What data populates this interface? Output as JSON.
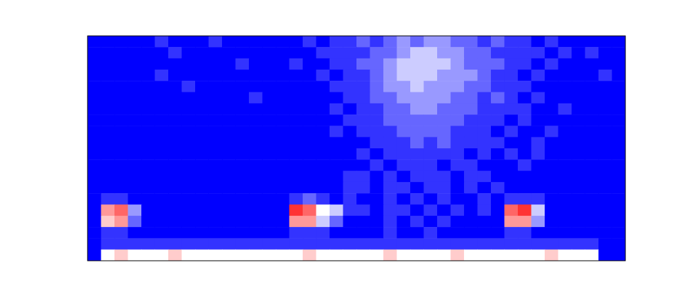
{
  "chart_data": {
    "type": "heatmap",
    "tick_labels": false,
    "zlim": [
      0,
      10
    ],
    "cells": [
      [
        0,
        0,
        0,
        0,
        0,
        1,
        0,
        0,
        0,
        1,
        0,
        0,
        0,
        0,
        0,
        0,
        1,
        0,
        1,
        1,
        2,
        1,
        2,
        3,
        2,
        3,
        3,
        2,
        2,
        1,
        2,
        1,
        1,
        0,
        1,
        0,
        0,
        0,
        0,
        0
      ],
      [
        0,
        0,
        0,
        0,
        0,
        0,
        1,
        0,
        0,
        0,
        0,
        0,
        0,
        0,
        0,
        0,
        0,
        1,
        1,
        1,
        1,
        2,
        2,
        3,
        4,
        4,
        3,
        3,
        2,
        2,
        1,
        1,
        1,
        1,
        0,
        1,
        0,
        1,
        0,
        0
      ],
      [
        0,
        0,
        0,
        0,
        0,
        0,
        0,
        0,
        0,
        0,
        0,
        1,
        0,
        0,
        0,
        1,
        0,
        0,
        1,
        1,
        2,
        2,
        3,
        4,
        4,
        4,
        4,
        3,
        2,
        2,
        2,
        1,
        1,
        0,
        1,
        0,
        0,
        0,
        0,
        0
      ],
      [
        0,
        0,
        0,
        0,
        0,
        1,
        0,
        0,
        0,
        0,
        0,
        0,
        0,
        0,
        0,
        0,
        0,
        1,
        0,
        1,
        1,
        2,
        3,
        4,
        4,
        4,
        3,
        3,
        3,
        2,
        1,
        1,
        0,
        1,
        0,
        0,
        0,
        0,
        1,
        0
      ],
      [
        0,
        0,
        0,
        0,
        0,
        0,
        0,
        1,
        0,
        0,
        0,
        0,
        0,
        0,
        0,
        0,
        0,
        0,
        1,
        1,
        1,
        2,
        3,
        3,
        4,
        3,
        3,
        3,
        2,
        2,
        1,
        1,
        1,
        0,
        0,
        0,
        0,
        0,
        0,
        0
      ],
      [
        0,
        0,
        0,
        0,
        0,
        0,
        0,
        0,
        0,
        0,
        0,
        0,
        1,
        0,
        0,
        0,
        0,
        0,
        0,
        1,
        1,
        2,
        2,
        3,
        3,
        3,
        3,
        2,
        2,
        1,
        2,
        1,
        0,
        1,
        0,
        0,
        0,
        0,
        0,
        0
      ],
      [
        0,
        0,
        0,
        0,
        0,
        0,
        0,
        0,
        0,
        0,
        0,
        0,
        0,
        0,
        0,
        0,
        0,
        0,
        1,
        0,
        1,
        1,
        2,
        2,
        3,
        3,
        2,
        2,
        2,
        1,
        1,
        1,
        1,
        0,
        0,
        1,
        0,
        0,
        0,
        0
      ],
      [
        0,
        0,
        0,
        0,
        0,
        0,
        0,
        0,
        0,
        0,
        0,
        0,
        0,
        0,
        0,
        0,
        0,
        0,
        0,
        1,
        1,
        1,
        2,
        2,
        2,
        2,
        2,
        2,
        1,
        1,
        1,
        0,
        1,
        0,
        0,
        0,
        0,
        0,
        0,
        0
      ],
      [
        0,
        0,
        0,
        0,
        0,
        0,
        0,
        0,
        0,
        0,
        0,
        0,
        0,
        0,
        0,
        0,
        0,
        0,
        1,
        0,
        1,
        1,
        1,
        2,
        2,
        2,
        2,
        1,
        1,
        1,
        0,
        1,
        0,
        0,
        1,
        0,
        0,
        0,
        0,
        0
      ],
      [
        0,
        0,
        0,
        0,
        0,
        0,
        0,
        0,
        0,
        0,
        0,
        0,
        0,
        0,
        0,
        0,
        0,
        0,
        0,
        0,
        0,
        1,
        1,
        1,
        2,
        1,
        2,
        1,
        1,
        1,
        1,
        0,
        0,
        1,
        0,
        0,
        0,
        0,
        0,
        0
      ],
      [
        0,
        0,
        0,
        0,
        0,
        0,
        0,
        0,
        0,
        0,
        0,
        0,
        0,
        0,
        0,
        0,
        0,
        0,
        0,
        0,
        1,
        0,
        1,
        1,
        1,
        1,
        1,
        1,
        0,
        1,
        0,
        1,
        0,
        1,
        0,
        0,
        0,
        0,
        0,
        0
      ],
      [
        0,
        0,
        0,
        0,
        0,
        0,
        0,
        0,
        0,
        0,
        0,
        0,
        0,
        0,
        0,
        0,
        0,
        0,
        0,
        0,
        0,
        1,
        0,
        1,
        1,
        1,
        0,
        1,
        1,
        0,
        0,
        0,
        1,
        0,
        0,
        0,
        0,
        0,
        0,
        0
      ],
      [
        0,
        0,
        0,
        0,
        0,
        0,
        0,
        0,
        0,
        0,
        0,
        0,
        0,
        0,
        0,
        0,
        0,
        0,
        0,
        1,
        1,
        0,
        1,
        0,
        1,
        1,
        1,
        0,
        1,
        1,
        0,
        0,
        0,
        0,
        0,
        0,
        0,
        0,
        0,
        0
      ],
      [
        0,
        0,
        0,
        0,
        0,
        0,
        0,
        0,
        0,
        0,
        0,
        0,
        0,
        0,
        0,
        0,
        0,
        0,
        0,
        1,
        1,
        0,
        1,
        1,
        0,
        1,
        1,
        0,
        1,
        0,
        1,
        0,
        0,
        0,
        0,
        0,
        0,
        0,
        0,
        0
      ],
      [
        0,
        1,
        1,
        0,
        0,
        0,
        0,
        0,
        0,
        0,
        0,
        0,
        0,
        0,
        0,
        1,
        2,
        1,
        0,
        1,
        0,
        0,
        1,
        0,
        1,
        0,
        1,
        0,
        0,
        1,
        0,
        1,
        1,
        1,
        0,
        0,
        0,
        0,
        0,
        0
      ],
      [
        0,
        7,
        8,
        3,
        0,
        0,
        0,
        0,
        0,
        0,
        0,
        0,
        0,
        0,
        0,
        9,
        8,
        5,
        4,
        1,
        1,
        0,
        1,
        1,
        0,
        1,
        0,
        1,
        0,
        1,
        0,
        8,
        9,
        4,
        0,
        0,
        0,
        0,
        0,
        0
      ],
      [
        0,
        6,
        7,
        2,
        0,
        0,
        0,
        0,
        0,
        0,
        0,
        0,
        0,
        0,
        0,
        7,
        7,
        4,
        2,
        0,
        0,
        0,
        1,
        0,
        1,
        0,
        1,
        0,
        0,
        0,
        0,
        7,
        7,
        3,
        0,
        0,
        0,
        0,
        0,
        0
      ],
      [
        0,
        1,
        1,
        0,
        0,
        0,
        0,
        0,
        0,
        0,
        0,
        0,
        0,
        0,
        0,
        1,
        1,
        1,
        0,
        0,
        0,
        0,
        1,
        0,
        0,
        1,
        0,
        0,
        0,
        0,
        0,
        1,
        1,
        0,
        0,
        0,
        0,
        0,
        0,
        0
      ],
      [
        0,
        1,
        1,
        1,
        1,
        1,
        1,
        1,
        1,
        1,
        1,
        1,
        1,
        1,
        1,
        1,
        1,
        1,
        1,
        1,
        1,
        1,
        1,
        1,
        1,
        1,
        1,
        1,
        1,
        1,
        1,
        1,
        1,
        1,
        1,
        1,
        1,
        1,
        0,
        0
      ],
      [
        0,
        5,
        6,
        5,
        5,
        5,
        6,
        5,
        5,
        5,
        5,
        5,
        5,
        5,
        5,
        5,
        6,
        5,
        5,
        5,
        5,
        5,
        6,
        5,
        5,
        5,
        5,
        6,
        5,
        5,
        5,
        5,
        5,
        5,
        6,
        5,
        5,
        5,
        0,
        0
      ]
    ]
  }
}
